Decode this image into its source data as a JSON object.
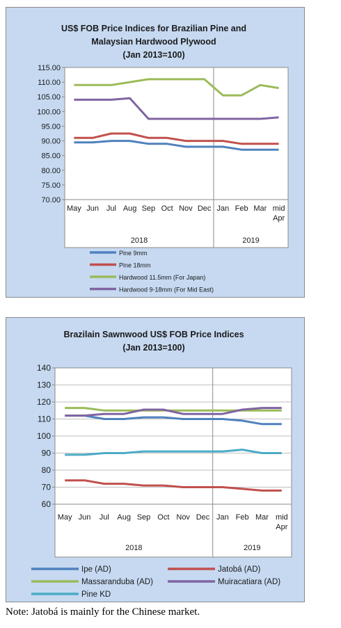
{
  "chart_data": [
    {
      "type": "line",
      "title_lines": [
        "US$ FOB Price Indices for Brazilian Pine and",
        "Malaysian Hardwood Plywood",
        "(Jan 2013=100)"
      ],
      "xlabel": "",
      "ylabel": "",
      "categories": [
        "May",
        "Jun",
        "Jul",
        "Aug",
        "Sep",
        "Oct",
        "Nov",
        "Dec",
        "Jan",
        "Feb",
        "Mar",
        "mid Apr"
      ],
      "category_lines": [
        [
          "May"
        ],
        [
          "Jun"
        ],
        [
          "Jul"
        ],
        [
          "Aug"
        ],
        [
          "Sep"
        ],
        [
          "Oct"
        ],
        [
          "Nov"
        ],
        [
          "Dec"
        ],
        [
          "Jan"
        ],
        [
          "Feb"
        ],
        [
          "Mar"
        ],
        [
          "mid",
          "Apr"
        ]
      ],
      "year_groups": [
        {
          "label": "2018",
          "start": 0,
          "end": 7
        },
        {
          "label": "2019",
          "start": 8,
          "end": 11
        }
      ],
      "ylim": [
        70,
        115
      ],
      "yticks": [
        "70.00",
        "75.00",
        "80.00",
        "85.00",
        "90.00",
        "95.00",
        "100.00",
        "105.00",
        "110.00",
        "115.00"
      ],
      "grid": false,
      "legend_position": "bottom",
      "series": [
        {
          "name": "Pine 9mm",
          "color": "#4f81bd",
          "values": [
            89.5,
            89.5,
            90,
            90,
            89,
            89,
            88,
            88,
            88,
            87,
            87,
            87
          ]
        },
        {
          "name": "Pine 18mm",
          "color": "#c0504d",
          "values": [
            91,
            91,
            92.5,
            92.5,
            91,
            91,
            90,
            90,
            90,
            89,
            89,
            89
          ]
        },
        {
          "name": "Hardwood 11.5mm (For Japan)",
          "color": "#9bbb59",
          "values": [
            109,
            109,
            109,
            110,
            111,
            111,
            111,
            111,
            105.5,
            105.5,
            109,
            108
          ]
        },
        {
          "name": "Hardwood 9-18mm (For Mid East)",
          "color": "#8064a2",
          "values": [
            104,
            104,
            104,
            104.5,
            97.5,
            97.5,
            97.5,
            97.5,
            97.5,
            97.5,
            97.5,
            98
          ]
        }
      ]
    },
    {
      "type": "line",
      "title_lines": [
        "Brazilain Sawnwood US$ FOB Price Indices",
        "(Jan 2013=100)"
      ],
      "xlabel": "",
      "ylabel": "",
      "categories": [
        "May",
        "Jun",
        "Jul",
        "Aug",
        "Sep",
        "Oct",
        "Nov",
        "Dec",
        "Jan",
        "Feb",
        "Mar",
        "mid Apr"
      ],
      "category_lines": [
        [
          "May"
        ],
        [
          "Jun"
        ],
        [
          "Jul"
        ],
        [
          "Aug"
        ],
        [
          "Sep"
        ],
        [
          "Oct"
        ],
        [
          "Nov"
        ],
        [
          "Dec"
        ],
        [
          "Jan"
        ],
        [
          "Feb"
        ],
        [
          "Mar"
        ],
        [
          "mid",
          "Apr"
        ]
      ],
      "year_groups": [
        {
          "label": "2018",
          "start": 0,
          "end": 7
        },
        {
          "label": "2019",
          "start": 8,
          "end": 11
        }
      ],
      "ylim": [
        60,
        140
      ],
      "yticks": [
        "60",
        "70",
        "80",
        "90",
        "100",
        "110",
        "120",
        "130",
        "140"
      ],
      "grid": true,
      "legend_position": "bottom",
      "series": [
        {
          "name": "Ipe (AD)",
          "color": "#4f81bd",
          "values": [
            112,
            112,
            110,
            110,
            111,
            111,
            110,
            110,
            110,
            109,
            107,
            107
          ]
        },
        {
          "name": "Jatobá (AD)",
          "color": "#c0504d",
          "values": [
            74,
            74,
            72,
            72,
            71,
            71,
            70,
            70,
            70,
            69,
            68,
            68
          ]
        },
        {
          "name": "Massaranduba (AD)",
          "color": "#9bbb59",
          "values": [
            116.5,
            116.5,
            115,
            115,
            115,
            115,
            115,
            115,
            115,
            115,
            115,
            115
          ]
        },
        {
          "name": "Muiracatiara (AD)",
          "color": "#8064a2",
          "values": [
            112,
            112,
            113,
            113,
            115.5,
            115.5,
            113,
            113,
            113,
            115.5,
            116.5,
            116.5
          ]
        },
        {
          "name": "Pine KD",
          "color": "#4bacc6",
          "values": [
            89,
            89,
            90,
            90,
            91,
            91,
            91,
            91,
            91,
            92,
            90,
            90
          ]
        }
      ]
    }
  ],
  "note": "Note: Jatobá is mainly for the Chinese market."
}
